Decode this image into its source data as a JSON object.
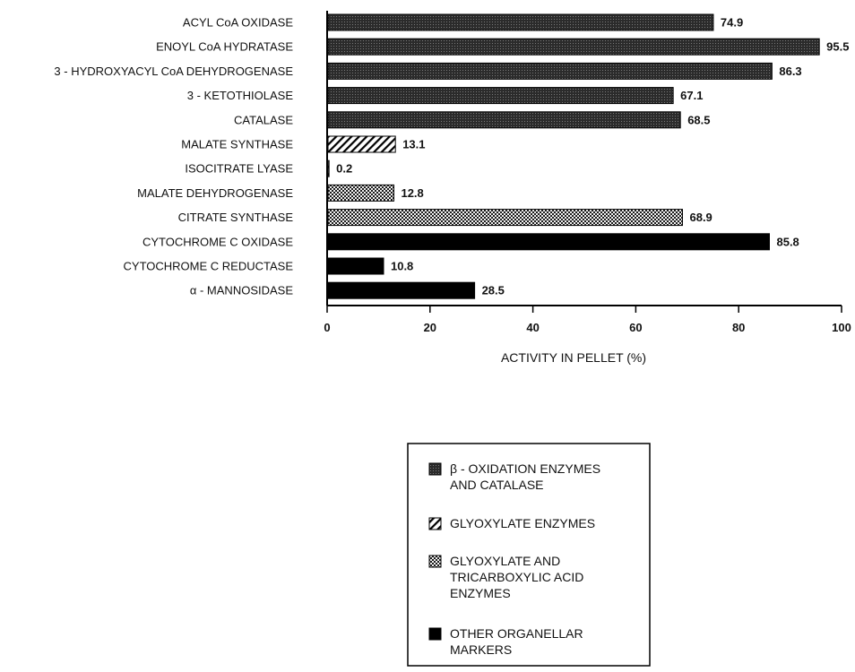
{
  "chart_data": {
    "type": "bar",
    "orientation": "horizontal",
    "categories": [
      "ACYL CoA OXIDASE",
      "ENOYL CoA  HYDRATASE",
      "3 - HYDROXYACYL CoA DEHYDROGENASE",
      "3 -  KETOTHIOLASE",
      "CATALASE",
      "MALATE  SYNTHASE",
      "ISOCITRATE LYASE",
      "MALATE DEHYDROGENASE",
      "CITRATE SYNTHASE",
      "CYTOCHROME C OXIDASE",
      "CYTOCHROME C REDUCTASE",
      "α - MANNOSIDASE"
    ],
    "values": [
      74.9,
      95.5,
      86.3,
      67.1,
      68.5,
      13.1,
      0.2,
      12.8,
      68.9,
      85.8,
      10.8,
      28.5
    ],
    "value_labels": [
      "74.9",
      "95.5",
      "86.3",
      "67.1",
      "68.5",
      "13.1",
      "0.2",
      "12.8",
      "68.9",
      "85.8",
      "10.8",
      "28.5"
    ],
    "groups": [
      "beta",
      "beta",
      "beta",
      "beta",
      "beta",
      "glyox",
      "glyox",
      "glyoxtca",
      "glyoxtca",
      "other",
      "other",
      "other"
    ],
    "xlabel": "ACTIVITY IN PELLET (%)",
    "ylabel": "",
    "xlim": [
      0,
      100
    ],
    "xticks": [
      "0",
      "20",
      "40",
      "60",
      "80",
      "100"
    ],
    "grid": false,
    "legend": {
      "placement": "bottom-center",
      "entries": [
        {
          "key": "beta",
          "pattern": "dense-dots",
          "lines": [
            "β - OXIDATION  ENZYMES",
            "AND CATALASE"
          ]
        },
        {
          "key": "glyox",
          "pattern": "diagonal-hatch",
          "lines": [
            "GLYOXYLATE  ENZYMES"
          ]
        },
        {
          "key": "glyoxtca",
          "pattern": "checker",
          "lines": [
            "GLYOXYLATE AND",
            "TRICARBOXYLIC ACID",
            "ENZYMES"
          ]
        },
        {
          "key": "other",
          "pattern": "solid",
          "lines": [
            "OTHER ORGANELLAR",
            "MARKERS"
          ]
        }
      ]
    }
  }
}
